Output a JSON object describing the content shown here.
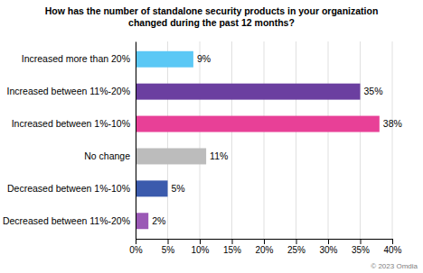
{
  "chart_data": {
    "type": "bar",
    "orientation": "horizontal",
    "title": "How has the number of standalone security products in your organization\nchanged during the past 12 months?",
    "categories": [
      "Increased more than 20%",
      "Increased between 11%-20%",
      "Increased between 1%-10%",
      "No change",
      "Decreased between 1%-10%",
      "Decreased between 11%-20%"
    ],
    "values": [
      9,
      35,
      38,
      11,
      5,
      2
    ],
    "value_labels": [
      "9%",
      "35%",
      "38%",
      "11%",
      "5%",
      "2%"
    ],
    "colors": [
      "#5BC8F5",
      "#6B3FA0",
      "#E84097",
      "#BCBCBC",
      "#3B5BAD",
      "#9B59B6"
    ],
    "xlim": [
      0,
      40
    ],
    "xticks": [
      {
        "value": 0,
        "label": "0%"
      },
      {
        "value": 5,
        "label": "5%"
      },
      {
        "value": 10,
        "label": "10%"
      },
      {
        "value": 15,
        "label": "15%"
      },
      {
        "value": 20,
        "label": "20%"
      },
      {
        "value": 25,
        "label": "25%"
      },
      {
        "value": 30,
        "label": "30%"
      },
      {
        "value": 35,
        "label": "35%"
      },
      {
        "value": 40,
        "label": "40%"
      }
    ],
    "grid": true,
    "data_labels": true,
    "annotations": [
      "© 2023 Omdia"
    ]
  }
}
